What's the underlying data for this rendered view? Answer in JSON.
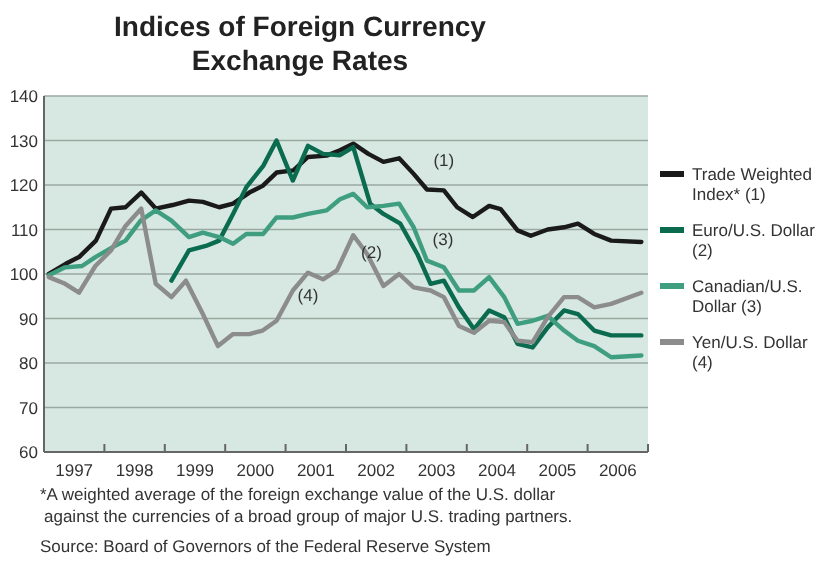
{
  "chart_data": {
    "type": "line",
    "title": "Indices of Foreign Currency Exchange Rates",
    "xlim": [
      1997,
      2007
    ],
    "ylim": [
      60,
      140
    ],
    "yticks": [
      60,
      70,
      80,
      90,
      100,
      110,
      120,
      130,
      140
    ],
    "xticks": [
      {
        "value": 1997,
        "label": null
      },
      {
        "value": 1997.5,
        "label": "1997"
      },
      {
        "value": 1998,
        "label": null
      },
      {
        "value": 1998.5,
        "label": "1998"
      },
      {
        "value": 1999,
        "label": null
      },
      {
        "value": 1999.5,
        "label": "1999"
      },
      {
        "value": 2000,
        "label": null
      },
      {
        "value": 2000.5,
        "label": "2000"
      },
      {
        "value": 2001,
        "label": null
      },
      {
        "value": 2001.5,
        "label": "2001"
      },
      {
        "value": 2002,
        "label": null
      },
      {
        "value": 2002.5,
        "label": "2002"
      },
      {
        "value": 2003,
        "label": null
      },
      {
        "value": 2003.5,
        "label": "2003"
      },
      {
        "value": 2004,
        "label": null
      },
      {
        "value": 2004.5,
        "label": "2004"
      },
      {
        "value": 2005,
        "label": null
      },
      {
        "value": 2005.5,
        "label": "2005"
      },
      {
        "value": 2006,
        "label": null
      },
      {
        "value": 2006.5,
        "label": "2006"
      },
      {
        "value": 2007,
        "label": null
      }
    ],
    "grid": "y",
    "legend": "right",
    "marker": "none",
    "line_style": "solid",
    "series": [
      {
        "name": "Trade Weighted Index* (1)",
        "color": "#1a1a1a",
        "x": [
          1997.08,
          1997.36,
          1997.58,
          1997.86,
          1998.11,
          1998.35,
          1998.61,
          1998.85,
          1999.13,
          1999.4,
          1999.63,
          1999.9,
          2000.13,
          2000.4,
          2000.62,
          2000.85,
          2001.13,
          2001.37,
          2001.68,
          2001.9,
          2002.12,
          2002.37,
          2002.62,
          2002.88,
          2003.12,
          2003.34,
          2003.62,
          2003.84,
          2004.1,
          2004.37,
          2004.56,
          2004.84,
          2005.06,
          2005.34,
          2005.61,
          2005.84,
          2006.11,
          2006.39,
          2006.89
        ],
        "values": [
          100,
          102.3,
          103.8,
          107.5,
          114.7,
          115,
          118.3,
          114.7,
          115.5,
          116.5,
          116.2,
          115,
          115.8,
          118.3,
          119.8,
          122.8,
          123.3,
          126.3,
          126.6,
          127.8,
          129.3,
          127,
          125.2,
          126,
          122.5,
          119,
          118.8,
          115,
          112.8,
          115.3,
          114.6,
          109.8,
          108.6,
          110,
          110.5,
          111.3,
          109,
          107.5,
          107.2
        ]
      },
      {
        "name": "Euro/U.S. Dollar (2)",
        "color": "#0b6b4f",
        "x": [
          1999.11,
          1999.4,
          1999.68,
          1999.9,
          2000.13,
          2000.35,
          2000.63,
          2000.85,
          2001.12,
          2001.37,
          2001.62,
          2001.9,
          2002.12,
          2002.4,
          2002.62,
          2002.9,
          2003.18,
          2003.4,
          2003.62,
          2003.87,
          2004.12,
          2004.37,
          2004.62,
          2004.84,
          2005.09,
          2005.34,
          2005.61,
          2005.84,
          2006.11,
          2006.39,
          2006.89
        ],
        "values": [
          98.5,
          105.3,
          106.3,
          107.5,
          113.5,
          119.5,
          124.3,
          130,
          121,
          128.8,
          127,
          126.7,
          128.5,
          115.8,
          113.5,
          111.3,
          104.5,
          97.8,
          98.5,
          92.5,
          87.6,
          91.8,
          90.3,
          84.3,
          83.5,
          88,
          91.8,
          91,
          87.3,
          86.2,
          86.2
        ]
      },
      {
        "name": "Canadian/U.S. Dollar (3)",
        "color": "#3f9e80",
        "x": [
          1997.08,
          1997.35,
          1997.63,
          1997.85,
          1998.13,
          1998.35,
          1998.6,
          1998.85,
          1999.11,
          1999.4,
          1999.63,
          1999.9,
          2000.13,
          2000.35,
          2000.63,
          2000.85,
          2001.12,
          2001.37,
          2001.68,
          2001.9,
          2002.12,
          2002.35,
          2002.62,
          2002.88,
          2003.12,
          2003.34,
          2003.62,
          2003.87,
          2004.12,
          2004.37,
          2004.62,
          2004.84,
          2005.09,
          2005.34,
          2005.61,
          2005.84,
          2006.11,
          2006.39,
          2006.89
        ],
        "values": [
          99.7,
          101.5,
          101.8,
          103.8,
          106,
          107.5,
          112,
          114.3,
          112,
          108.3,
          109.3,
          108.3,
          106.8,
          109,
          109,
          112.7,
          112.7,
          113.5,
          114.3,
          116.8,
          118,
          115,
          115.3,
          115.8,
          110.5,
          103,
          101.5,
          96.3,
          96.3,
          99.3,
          94.8,
          88.8,
          89.5,
          90.6,
          87.3,
          85,
          83.8,
          81.3,
          81.7
        ]
      },
      {
        "name": "Yen/U.S. Dollar (4)",
        "color": "#8c8c8c",
        "x": [
          1997.08,
          1997.35,
          1997.58,
          1997.85,
          1998.11,
          1998.35,
          1998.61,
          1998.85,
          1999.11,
          1999.35,
          1999.63,
          1999.88,
          2000.13,
          2000.4,
          2000.62,
          2000.85,
          2001.12,
          2001.37,
          2001.62,
          2001.85,
          2002.12,
          2002.35,
          2002.62,
          2002.88,
          2003.12,
          2003.4,
          2003.62,
          2003.87,
          2004.12,
          2004.37,
          2004.62,
          2004.84,
          2005.09,
          2005.34,
          2005.61,
          2005.84,
          2006.11,
          2006.39,
          2006.89
        ],
        "values": [
          99.3,
          97.8,
          95.8,
          101.8,
          105.3,
          110.8,
          114.7,
          97.8,
          94.8,
          98.5,
          91,
          83.8,
          86.5,
          86.5,
          87.3,
          89.5,
          96.3,
          100.3,
          98.8,
          100.8,
          108.7,
          104.5,
          97.3,
          100,
          97,
          96.3,
          94.8,
          88.3,
          86.8,
          89.5,
          89.2,
          85,
          84.7,
          90.3,
          94.8,
          94.8,
          92.5,
          93.3,
          95.8
        ]
      }
    ],
    "annotations": [
      "(1)",
      "(2)",
      "(3)",
      "(4)",
      "*A weighted average of the foreign exchange value of the U.S. dollar against the currencies of a broad group of major U.S. trading partners.",
      "Source: Board of Governors of the Federal Reserve System"
    ]
  }
}
